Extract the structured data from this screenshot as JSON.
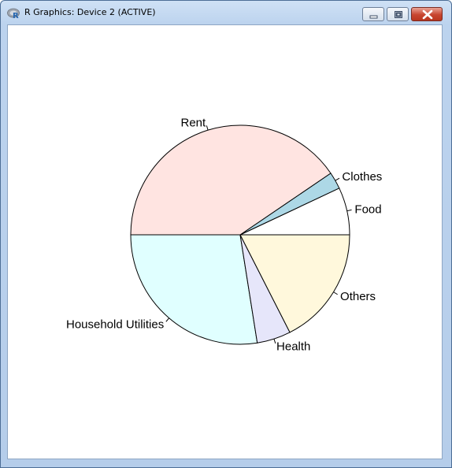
{
  "window": {
    "title": "R Graphics: Device 2 (ACTIVE)",
    "icon": "r-logo-icon",
    "buttons": [
      "minimize-icon",
      "maximize-icon",
      "close-icon"
    ]
  },
  "chart_data": {
    "type": "pie",
    "direction": "counterclockwise",
    "start_angle_deg": 0,
    "labels": [
      "Food",
      "Clothes",
      "Rent",
      "Household Utilities",
      "Health",
      "Others"
    ],
    "values": [
      7,
      2.5,
      40.5,
      27.5,
      5,
      17.5
    ],
    "colors": [
      "#ffffff",
      "#add8e6",
      "#ffe4e1",
      "#e0ffff",
      "#e6e6fa",
      "#fff8dc"
    ],
    "border_color": "#000000",
    "legend": "none",
    "title": ""
  }
}
